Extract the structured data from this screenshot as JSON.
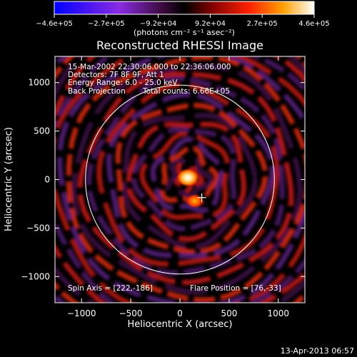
{
  "chart_data": {
    "type": "heatmap",
    "title": "Reconstructed RHESSI Image",
    "xlabel": "Heliocentric X (arcsec)",
    "ylabel": "Heliocentric Y (arcsec)",
    "xlim": [
      -1270,
      1270
    ],
    "ylim": [
      -1270,
      1270
    ],
    "xticks": [
      -1000,
      -500,
      0,
      500,
      1000
    ],
    "xtick_labels": [
      "−1000",
      "−500",
      "0",
      "500",
      "1000"
    ],
    "yticks": [
      -1000,
      -500,
      0,
      500,
      1000
    ],
    "ytick_labels": [
      "−1000",
      "−500",
      "0",
      "500",
      "1000"
    ],
    "colorbar": {
      "range": [
        -460000,
        460000
      ],
      "tick_labels": [
        "−4.6e+05",
        "−2.7e+05",
        "−9.2e+04",
        "9.2e+04",
        "2.7e+05",
        "4.6e+05"
      ],
      "unit_text": "(photons cm⁻² s⁻¹ asec⁻²)"
    },
    "annotations": {
      "time_range": "15-Mar-2002 22:30:06.000 to 22:36:06.000",
      "detectors": "Detectors: 7F 8F 9F, Att 1",
      "energy_range": "Energy Range: 6.0 - 25.0 keV",
      "method": "Back Projection",
      "total_counts": "Total counts: 6.66E+05",
      "spin_axis": "Spin Axis = [222,-186]",
      "flare_position": "Flare Position = [76,-33]"
    },
    "spin_axis": [
      222,
      -186
    ],
    "solar_limb_radius": 960,
    "sources": [
      {
        "x": 80,
        "y": 20,
        "peak": 460000
      },
      {
        "x": 150,
        "y": -220,
        "peak": 300000
      }
    ]
  },
  "footer": {
    "timestamp": "13-Apr-2013 06:57"
  }
}
